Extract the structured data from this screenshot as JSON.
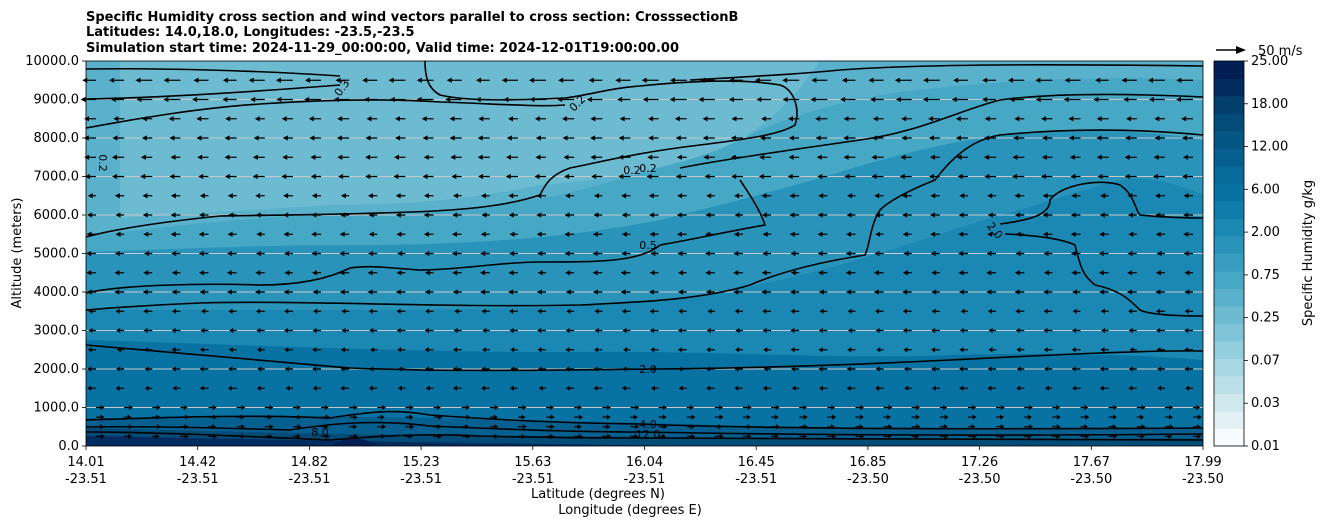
{
  "chart_data": {
    "type": "contour",
    "title_lines": [
      "Specific Humidity cross section and wind vectors parallel to cross section: CrosssectionB",
      "Latitudes: 14.0,18.0, Longitudes: -23.5,-23.5",
      "Simulation start time: 2024-11-29_00:00:00, Valid time: 2024-12-01T19:00:00.00"
    ],
    "xlabel": "Latitude (degrees N)",
    "xlabel2": "Longitude (degrees E)",
    "ylabel": "Altitude (meters)",
    "ylim": [
      0,
      10000
    ],
    "y_ticks": [
      "0.0",
      "1000.0",
      "2000.0",
      "3000.0",
      "4000.0",
      "5000.0",
      "6000.0",
      "7000.0",
      "8000.0",
      "9000.0",
      "10000.0"
    ],
    "x_ticks": [
      {
        "lat": "14.01",
        "lon": "-23.51"
      },
      {
        "lat": "14.42",
        "lon": "-23.51"
      },
      {
        "lat": "14.82",
        "lon": "-23.51"
      },
      {
        "lat": "15.23",
        "lon": "-23.51"
      },
      {
        "lat": "15.63",
        "lon": "-23.51"
      },
      {
        "lat": "16.04",
        "lon": "-23.51"
      },
      {
        "lat": "16.45",
        "lon": "-23.51"
      },
      {
        "lat": "16.85",
        "lon": "-23.50"
      },
      {
        "lat": "17.26",
        "lon": "-23.50"
      },
      {
        "lat": "17.67",
        "lon": "-23.50"
      },
      {
        "lat": "17.99",
        "lon": "-23.50"
      }
    ],
    "colorbar": {
      "label": "Specific Humidity g/kg",
      "ticks": [
        "0.01",
        "0.03",
        "0.07",
        "0.25",
        "0.75",
        "2.00",
        "6.00",
        "12.00",
        "18.00",
        "25.00"
      ],
      "colors": [
        "#f7fbfd",
        "#e3f1f4",
        "#cfe8ee",
        "#bbe0e8",
        "#a7d7e2",
        "#93cedd",
        "#7fc5d7",
        "#6cbbd1",
        "#59b1cc",
        "#47a8c6",
        "#389dc0",
        "#2a93ba",
        "#1b88b3",
        "#0e7dab",
        "#0873a3",
        "#066a9b",
        "#056090",
        "#045785",
        "#034c78",
        "#023f6c",
        "#022c60",
        "#021e55"
      ]
    },
    "wind_key": {
      "label": "50 m/s"
    },
    "contours": [
      {
        "level": 0.2,
        "labels": [
          "0.2",
          "0.2",
          "0.2",
          "0.2"
        ]
      },
      {
        "level": 0.3,
        "labels": [
          "0.3"
        ]
      },
      {
        "level": 0.5,
        "labels": [
          "0.5"
        ]
      },
      {
        "level": 2.0,
        "labels": [
          "2.0",
          "2.0"
        ]
      },
      {
        "level": 4.0,
        "labels": [
          "4.0"
        ]
      },
      {
        "level": 8.0,
        "labels": [
          "8.0"
        ]
      },
      {
        "level": 12.0,
        "labels": [
          "12.0"
        ]
      }
    ],
    "grid": true,
    "wind_rows_altitude_m": [
      250,
      500,
      750,
      1000,
      1500,
      2000,
      2500,
      3000,
      3500,
      4000,
      4500,
      5000,
      5500,
      6000,
      6500,
      7000,
      7500,
      8000,
      8500,
      9000,
      9500
    ]
  }
}
